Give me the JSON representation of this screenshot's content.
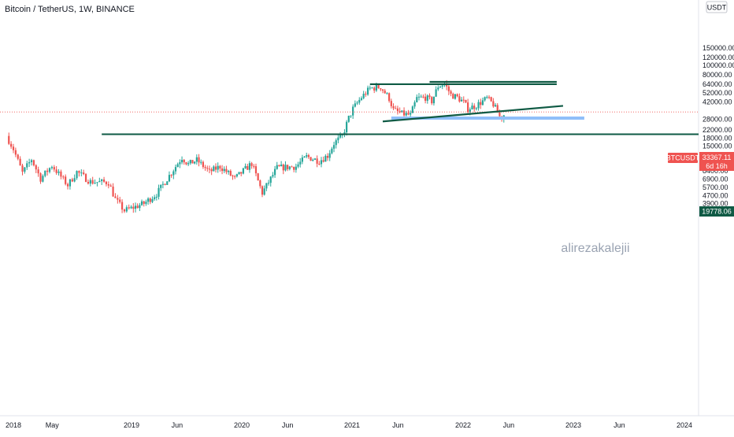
{
  "header": {
    "title": "Bitcoin / TetherUS, 1W, BINANCE"
  },
  "currency_label": "USDT",
  "watermark": "alirezakalejii",
  "colors": {
    "up": "#26a69a",
    "down": "#ef5350",
    "level": "#0f5a44",
    "support": "#90bff9",
    "last_price": "#ef5350",
    "pane_border": "#e0e3eb",
    "text": "#131722",
    "watermark": "#9aa3b2"
  },
  "price_tag": {
    "symbol": "BTCUSDT",
    "price": "33367.11",
    "countdown": "6d 16h"
  },
  "level_tag": {
    "price": "19778.06"
  },
  "chart_data": {
    "type": "candlestick",
    "title": "Bitcoin / TetherUS, 1W, BINANCE",
    "y_scale": "log",
    "ylim": [
      3000,
      150000
    ],
    "y_ticks": [
      "150000.00",
      "120000.00",
      "100000.00",
      "80000.00",
      "64000.00",
      "52000.00",
      "42000.00",
      "28000.00",
      "22000.00",
      "18000.00",
      "15000.00",
      "12000.00",
      "10000.00",
      "8400.00",
      "6900.00",
      "5700.00",
      "4700.00",
      "3900.00",
      "3250.00"
    ],
    "x_range": [
      "2018-01-01",
      "2024-04-01"
    ],
    "x_ticks": [
      {
        "label": "2018",
        "date": "2018-01-01"
      },
      {
        "label": "May",
        "date": "2018-05-01"
      },
      {
        "label": "2019",
        "date": "2019-01-01"
      },
      {
        "label": "Jun",
        "date": "2019-06-01"
      },
      {
        "label": "2020",
        "date": "2020-01-01"
      },
      {
        "label": "Jun",
        "date": "2020-06-01"
      },
      {
        "label": "2021",
        "date": "2021-01-01"
      },
      {
        "label": "Jun",
        "date": "2021-06-01"
      },
      {
        "label": "2022",
        "date": "2022-01-01"
      },
      {
        "label": "Jun",
        "date": "2022-06-01"
      },
      {
        "label": "2023",
        "date": "2023-01-01"
      },
      {
        "label": "Jun",
        "date": "2023-06-01"
      },
      {
        "label": "2024",
        "date": "2024-01-01"
      }
    ],
    "price_path": [
      [
        "2017-12-18",
        19000
      ],
      [
        "2018-01-08",
        14000
      ],
      [
        "2018-02-05",
        8000
      ],
      [
        "2018-03-05",
        11000
      ],
      [
        "2018-04-02",
        7000
      ],
      [
        "2018-05-07",
        9500
      ],
      [
        "2018-06-25",
        6000
      ],
      [
        "2018-07-23",
        8200
      ],
      [
        "2018-09-03",
        6500
      ],
      [
        "2018-10-29",
        6400
      ],
      [
        "2018-11-19",
        4300
      ],
      [
        "2018-12-17",
        3300
      ],
      [
        "2019-02-18",
        3900
      ],
      [
        "2019-04-01",
        4900
      ],
      [
        "2019-05-13",
        7500
      ],
      [
        "2019-06-24",
        11500
      ],
      [
        "2019-07-15",
        9800
      ],
      [
        "2019-08-12",
        10800
      ],
      [
        "2019-09-23",
        8200
      ],
      [
        "2019-10-28",
        9300
      ],
      [
        "2019-12-16",
        7000
      ],
      [
        "2020-02-10",
        10000
      ],
      [
        "2020-03-16",
        5000
      ],
      [
        "2020-05-04",
        9000
      ],
      [
        "2020-07-06",
        9300
      ],
      [
        "2020-08-10",
        11700
      ],
      [
        "2020-09-21",
        10600
      ],
      [
        "2020-10-19",
        12000
      ],
      [
        "2020-11-09",
        16000
      ],
      [
        "2020-12-07",
        19000
      ],
      [
        "2020-12-28",
        29000
      ],
      [
        "2021-01-11",
        36000
      ],
      [
        "2021-02-08",
        47000
      ],
      [
        "2021-03-08",
        58000
      ],
      [
        "2021-04-12",
        60000
      ],
      [
        "2021-05-10",
        46000
      ],
      [
        "2021-05-24",
        35000
      ],
      [
        "2021-06-21",
        32000
      ],
      [
        "2021-07-19",
        31000
      ],
      [
        "2021-08-09",
        46000
      ],
      [
        "2021-09-06",
        47000
      ],
      [
        "2021-09-27",
        43000
      ],
      [
        "2021-10-18",
        61000
      ],
      [
        "2021-11-08",
        65000
      ],
      [
        "2021-11-29",
        50000
      ],
      [
        "2021-12-20",
        47000
      ],
      [
        "2022-01-10",
        42000
      ],
      [
        "2022-01-24",
        36000
      ],
      [
        "2022-02-21",
        39000
      ],
      [
        "2022-03-28",
        46000
      ],
      [
        "2022-04-18",
        40000
      ],
      [
        "2022-05-09",
        30000
      ],
      [
        "2022-05-16",
        29500
      ]
    ],
    "annotations": {
      "resistance_lines": [
        {
          "price": 64000,
          "x1": "2021-03-01",
          "x2": "2022-11-07"
        },
        {
          "price": 67600,
          "x1": "2021-09-13",
          "x2": "2022-11-07"
        }
      ],
      "trendline": {
        "p1": [
          "2021-04-12",
          26700
        ],
        "p2": [
          "2022-11-28",
          38500
        ]
      },
      "support_zone": {
        "price": 28900,
        "x1": "2021-05-10",
        "x2": "2023-02-06"
      },
      "horizontal_level": {
        "price": 19778.06,
        "x1": "2018-10-01",
        "x2": "2024-04-01"
      },
      "last_price": 33367.11
    },
    "grid": false,
    "legend": "none"
  }
}
